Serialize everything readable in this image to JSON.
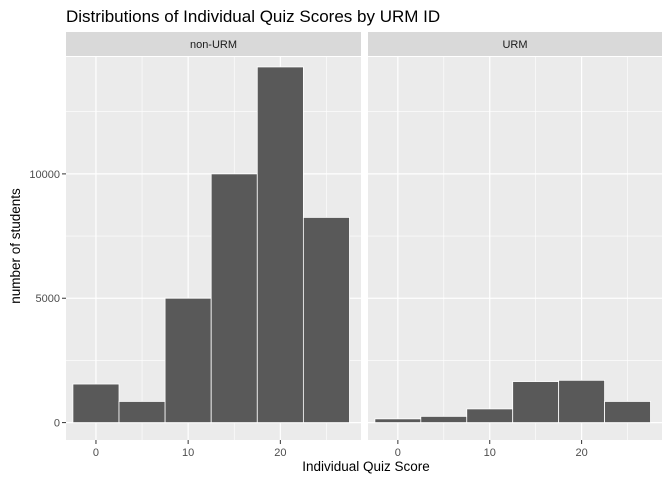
{
  "chart_data": {
    "type": "bar",
    "title": "Distributions of Individual Quiz Scores by URM ID",
    "xlabel": "Individual Quiz Score",
    "ylabel": "number of students",
    "xlim": [
      -3.25,
      28.75
    ],
    "ylim": [
      -700,
      14700
    ],
    "x_ticks": [
      0,
      10,
      20
    ],
    "y_ticks": [
      0,
      5000,
      10000
    ],
    "grid": true,
    "legend": "none",
    "bar_color": "#595959",
    "bar_outline": "#ffffff",
    "panel_background": "#ebebeb",
    "strip_background": "#d9d9d9",
    "bins": [
      {
        "from": -2.5,
        "to": 2.5
      },
      {
        "from": 2.5,
        "to": 7.5
      },
      {
        "from": 7.5,
        "to": 12.5
      },
      {
        "from": 12.5,
        "to": 17.5
      },
      {
        "from": 17.5,
        "to": 22.5
      },
      {
        "from": 22.5,
        "to": 27.5
      }
    ],
    "facets": [
      {
        "label": "non-URM",
        "values": [
          1550,
          850,
          5000,
          10000,
          14300,
          8250
        ]
      },
      {
        "label": "URM",
        "values": [
          150,
          250,
          550,
          1650,
          1700,
          850
        ]
      }
    ]
  }
}
